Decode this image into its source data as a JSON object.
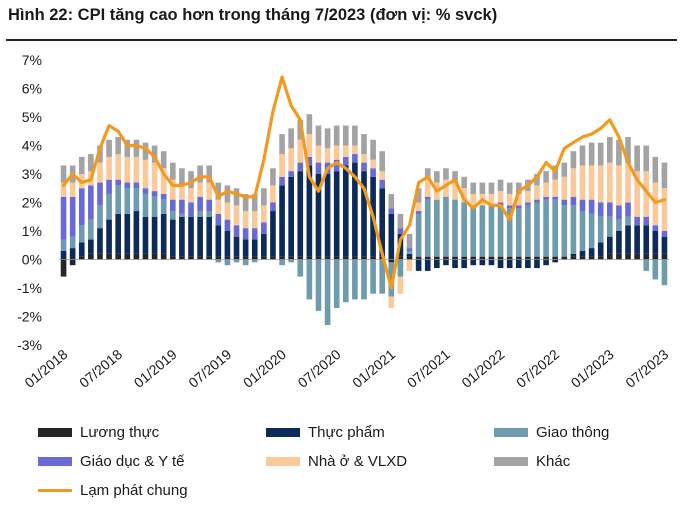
{
  "title": "Hình 22: CPI tăng cao hơn trong tháng 7/2023 (đơn vị: % svck)",
  "chart_data": {
    "type": "bar",
    "stacked": true,
    "title": "Hình 22: CPI tăng cao hơn trong tháng 7/2023 (đơn vị: % svck)",
    "unit": "% svck",
    "ylim": [
      -3,
      7
    ],
    "yticks": [
      "7%",
      "6%",
      "5%",
      "4%",
      "3%",
      "2%",
      "1%",
      "0%",
      "-1%",
      "-2%",
      "-3%"
    ],
    "xticks": [
      "01/2018",
      "07/2018",
      "01/2019",
      "07/2019",
      "01/2020",
      "07/2020",
      "01/2021",
      "07/2021",
      "01/2022",
      "07/2022",
      "01/2023",
      "07/2023"
    ],
    "x": [
      "01/2018",
      "02/2018",
      "03/2018",
      "04/2018",
      "05/2018",
      "06/2018",
      "07/2018",
      "08/2018",
      "09/2018",
      "10/2018",
      "11/2018",
      "12/2018",
      "01/2019",
      "02/2019",
      "03/2019",
      "04/2019",
      "05/2019",
      "06/2019",
      "07/2019",
      "08/2019",
      "09/2019",
      "10/2019",
      "11/2019",
      "12/2019",
      "01/2020",
      "02/2020",
      "03/2020",
      "04/2020",
      "05/2020",
      "06/2020",
      "07/2020",
      "08/2020",
      "09/2020",
      "10/2020",
      "11/2020",
      "12/2020",
      "01/2021",
      "02/2021",
      "03/2021",
      "04/2021",
      "05/2021",
      "06/2021",
      "07/2021",
      "08/2021",
      "09/2021",
      "10/2021",
      "11/2021",
      "12/2021",
      "01/2022",
      "02/2022",
      "03/2022",
      "04/2022",
      "05/2022",
      "06/2022",
      "07/2022",
      "08/2022",
      "09/2022",
      "10/2022",
      "11/2022",
      "12/2022",
      "01/2023",
      "02/2023",
      "03/2023",
      "04/2023",
      "05/2023",
      "06/2023",
      "07/2023"
    ],
    "series": [
      {
        "name": "Lương thực",
        "color": "#262626",
        "values": [
          -0.6,
          -0.2,
          0.1,
          0.2,
          0.2,
          0.2,
          0.2,
          0.2,
          0.2,
          0.2,
          0.2,
          0.2,
          0.1,
          0.1,
          0.1,
          0.1,
          0.1,
          0.1,
          0.1,
          0.1,
          0.1,
          0.1,
          0.1,
          0.1,
          0.1,
          0.1,
          0.1,
          0.1,
          0.1,
          0.1,
          0.1,
          0.1,
          0.1,
          0.1,
          0.1,
          0.1,
          -0.1,
          0.1,
          0.1,
          0.1,
          0.1,
          0.1,
          0.1,
          0.1,
          0.1,
          0.1,
          0.1,
          0.1,
          0.1,
          0.1,
          0.1,
          0.1,
          0.1,
          0.1,
          0.1,
          0.1,
          0.1,
          0.1,
          0.1,
          0.1,
          0.2,
          0.2,
          0.2,
          0.2,
          0.2,
          0.2,
          0.2
        ]
      },
      {
        "name": "Thực phẩm",
        "color": "#0c2a5a",
        "values": [
          0.3,
          0.4,
          0.5,
          0.5,
          0.9,
          1.2,
          1.4,
          1.4,
          1.5,
          1.3,
          1.3,
          1.4,
          1.3,
          1.4,
          1.4,
          1.4,
          1.4,
          1.1,
          0.9,
          0.7,
          0.6,
          0.6,
          0.8,
          1.6,
          2.5,
          2.8,
          3.0,
          3.2,
          2.9,
          2.9,
          3.0,
          3.2,
          3.3,
          3.0,
          2.8,
          2.4,
          1.6,
          0.8,
          0.1,
          -0.4,
          -0.4,
          -0.3,
          -0.2,
          -0.3,
          -0.3,
          -0.2,
          -0.2,
          -0.2,
          -0.3,
          -0.3,
          -0.3,
          -0.3,
          -0.3,
          -0.2,
          -0.1,
          0.0,
          0.1,
          0.2,
          0.3,
          0.5,
          0.6,
          0.8,
          1.0,
          1.0,
          1.0,
          0.8,
          0.6
        ]
      },
      {
        "name": "Giao thông",
        "color": "#6e9bae",
        "values": [
          0.4,
          0.4,
          0.6,
          0.7,
          0.8,
          0.9,
          1.0,
          0.9,
          0.8,
          0.8,
          0.7,
          0.5,
          0.3,
          0.1,
          0.0,
          0.2,
          0.2,
          -0.1,
          -0.2,
          -0.1,
          -0.2,
          -0.1,
          0.0,
          0.0,
          -0.2,
          -0.1,
          -0.6,
          -1.4,
          -1.8,
          -2.3,
          -1.7,
          -1.5,
          -1.4,
          -1.4,
          -1.2,
          -1.2,
          -1.2,
          -0.6,
          0.1,
          1.5,
          2.0,
          2.0,
          2.1,
          2.0,
          1.9,
          1.8,
          1.8,
          1.8,
          1.8,
          1.7,
          1.7,
          1.8,
          1.9,
          2.0,
          2.0,
          1.8,
          1.7,
          1.4,
          1.2,
          0.9,
          0.7,
          0.4,
          0.3,
          0.0,
          -0.4,
          -0.7,
          -0.9
        ]
      },
      {
        "name": "Giáo dục & Y tế",
        "color": "#6a6ad6",
        "values": [
          1.5,
          1.4,
          1.3,
          1.2,
          0.8,
          0.5,
          0.2,
          0.2,
          0.2,
          0.2,
          0.2,
          0.2,
          0.4,
          0.5,
          0.5,
          0.5,
          0.4,
          0.4,
          0.4,
          0.4,
          0.4,
          0.4,
          0.4,
          0.3,
          0.3,
          0.2,
          0.3,
          0.3,
          0.4,
          0.4,
          0.4,
          0.3,
          0.3,
          0.3,
          0.3,
          0.3,
          0.2,
          0.2,
          0.1,
          0.1,
          0.1,
          0.0,
          0.0,
          0.0,
          0.0,
          0.0,
          0.0,
          0.0,
          0.1,
          0.1,
          0.1,
          0.1,
          0.1,
          0.1,
          0.1,
          0.2,
          0.3,
          0.4,
          0.5,
          0.5,
          0.5,
          0.5,
          0.5,
          0.3,
          0.3,
          0.2,
          0.2
        ]
      },
      {
        "name": "Nhà ở & VLXD",
        "color": "#fbc899",
        "values": [
          0.5,
          0.5,
          0.5,
          0.5,
          0.7,
          0.8,
          0.9,
          0.9,
          0.9,
          1.0,
          1.0,
          0.9,
          0.7,
          0.5,
          0.5,
          0.5,
          0.6,
          0.5,
          0.6,
          0.7,
          0.6,
          0.6,
          0.6,
          0.6,
          0.8,
          0.8,
          0.8,
          0.8,
          0.6,
          0.5,
          0.5,
          0.4,
          0.3,
          0.3,
          0.3,
          0.3,
          -0.4,
          -0.6,
          -0.4,
          0.3,
          0.6,
          0.6,
          0.6,
          0.6,
          0.5,
          0.4,
          0.4,
          0.4,
          0.4,
          0.4,
          0.4,
          0.4,
          0.5,
          0.5,
          0.6,
          0.8,
          1.0,
          1.2,
          1.2,
          1.3,
          1.4,
          1.4,
          1.4,
          1.6,
          1.6,
          1.5,
          1.5
        ]
      },
      {
        "name": "Khác",
        "color": "#a3a3a3",
        "values": [
          0.6,
          0.6,
          0.6,
          0.6,
          0.6,
          0.6,
          0.6,
          0.6,
          0.6,
          0.6,
          0.6,
          0.6,
          0.6,
          0.6,
          0.6,
          0.6,
          0.6,
          0.6,
          0.6,
          0.6,
          0.6,
          0.6,
          0.6,
          0.6,
          0.7,
          0.7,
          0.7,
          0.7,
          0.7,
          0.7,
          0.7,
          0.7,
          0.7,
          0.7,
          0.7,
          0.7,
          0.5,
          0.5,
          0.5,
          0.5,
          0.4,
          0.4,
          0.4,
          0.4,
          0.4,
          0.4,
          0.4,
          0.4,
          0.4,
          0.4,
          0.4,
          0.4,
          0.4,
          0.4,
          0.5,
          0.5,
          0.6,
          0.7,
          0.8,
          0.8,
          0.9,
          0.9,
          0.9,
          0.9,
          0.9,
          0.9,
          0.9
        ]
      }
    ],
    "line": {
      "name": "Lạm phát chung",
      "color": "#f39a1e",
      "values": [
        2.6,
        3.0,
        2.7,
        2.8,
        3.9,
        4.7,
        4.5,
        4.0,
        4.0,
        3.9,
        3.6,
        3.0,
        2.6,
        2.6,
        2.7,
        2.9,
        2.9,
        2.2,
        2.4,
        2.3,
        2.2,
        2.2,
        3.5,
        5.2,
        6.4,
        5.4,
        4.9,
        2.9,
        2.4,
        3.2,
        3.4,
        3.2,
        2.9,
        2.5,
        1.5,
        0.2,
        -1.0,
        0.7,
        1.2,
        2.7,
        2.9,
        2.4,
        2.6,
        2.8,
        2.1,
        1.8,
        2.1,
        1.9,
        1.9,
        1.4,
        2.4,
        2.6,
        2.9,
        3.4,
        3.1,
        3.9,
        4.1,
        4.3,
        4.4,
        4.6,
        4.9,
        4.3,
        3.4,
        2.8,
        2.4,
        2.0,
        2.1
      ]
    }
  },
  "legend": {
    "items": [
      {
        "label": "Lương thực",
        "color": "#262626"
      },
      {
        "label": "Thực phẩm",
        "color": "#0c2a5a"
      },
      {
        "label": "Giao thông",
        "color": "#6e9bae"
      },
      {
        "label": "Giáo dục & Y tế",
        "color": "#6a6ad6"
      },
      {
        "label": "Nhà ở & VLXD",
        "color": "#fbc899"
      },
      {
        "label": "Khác",
        "color": "#a3a3a3"
      }
    ],
    "line_label": "Lạm phát chung",
    "line_color": "#f39a1e"
  }
}
